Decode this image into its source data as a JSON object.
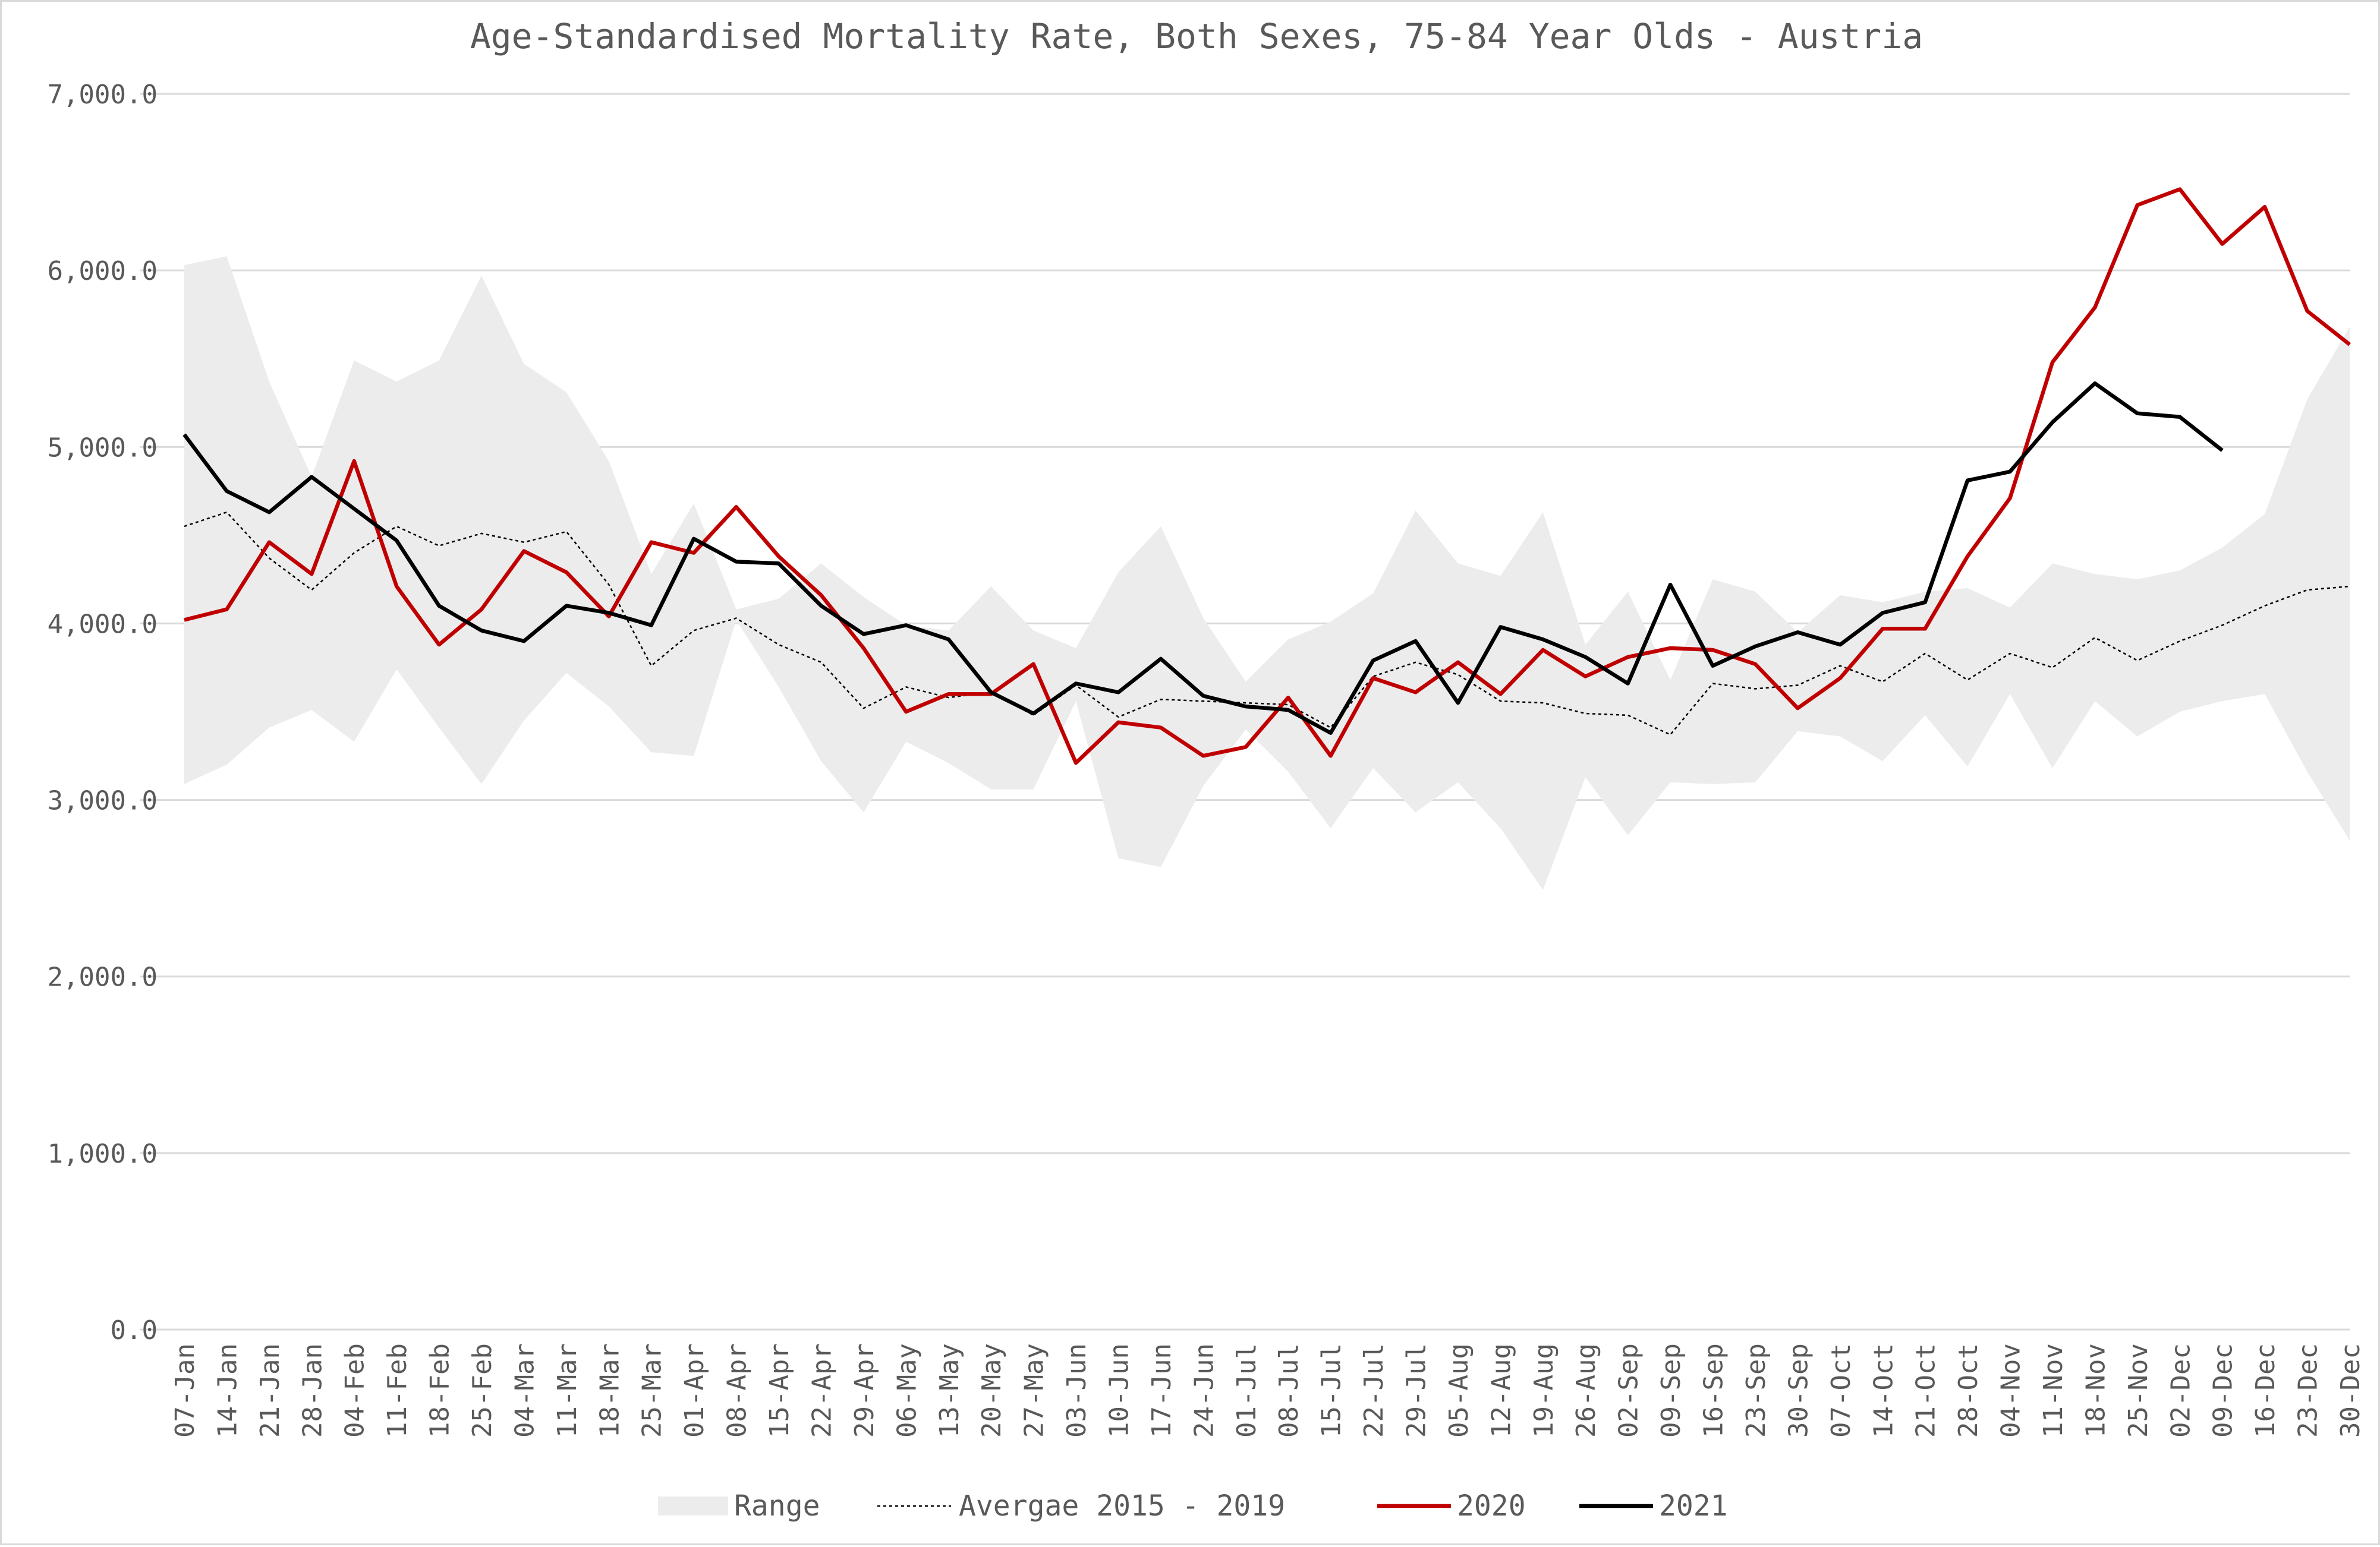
{
  "chart_data": {
    "type": "line",
    "title": "Age-Standardised Mortality Rate, Both Sexes, 75-84 Year Olds - Austria",
    "xlabel": "",
    "ylabel": "",
    "ylim": [
      0,
      7000
    ],
    "y_ticks": [
      "0.0",
      "1,000.0",
      "2,000.0",
      "3,000.0",
      "4,000.0",
      "5,000.0",
      "6,000.0",
      "7,000.0"
    ],
    "y_tick_values": [
      0,
      1000,
      2000,
      3000,
      4000,
      5000,
      6000,
      7000
    ],
    "grid": "horizontal",
    "legend_position": "bottom",
    "categories": [
      "07-Jan",
      "14-Jan",
      "21-Jan",
      "28-Jan",
      "04-Feb",
      "11-Feb",
      "18-Feb",
      "25-Feb",
      "04-Mar",
      "11-Mar",
      "18-Mar",
      "25-Mar",
      "01-Apr",
      "08-Apr",
      "15-Apr",
      "22-Apr",
      "29-Apr",
      "06-May",
      "13-May",
      "20-May",
      "27-May",
      "03-Jun",
      "10-Jun",
      "17-Jun",
      "24-Jun",
      "01-Jul",
      "08-Jul",
      "15-Jul",
      "22-Jul",
      "29-Jul",
      "05-Aug",
      "12-Aug",
      "19-Aug",
      "26-Aug",
      "02-Sep",
      "09-Sep",
      "16-Sep",
      "23-Sep",
      "30-Sep",
      "07-Oct",
      "14-Oct",
      "21-Oct",
      "28-Oct",
      "04-Nov",
      "11-Nov",
      "18-Nov",
      "25-Nov",
      "02-Dec",
      "09-Dec",
      "16-Dec",
      "23-Dec",
      "30-Dec"
    ],
    "range": {
      "name": "Range",
      "color": "#ececec",
      "lower": [
        3090,
        3200,
        3410,
        3510,
        3330,
        3740,
        3410,
        3090,
        3450,
        3720,
        3530,
        3270,
        3250,
        4020,
        3640,
        3220,
        2930,
        3330,
        3210,
        3060,
        3060,
        3560,
        2670,
        2620,
        3080,
        3400,
        3160,
        2840,
        3180,
        2930,
        3100,
        2840,
        2490,
        3130,
        2800,
        3100,
        3090,
        3100,
        3390,
        3360,
        3220,
        3480,
        3190,
        3600,
        3180,
        3560,
        3360,
        3500,
        3560,
        3600,
        3160,
        2770
      ],
      "upper": [
        6030,
        6080,
        5370,
        4830,
        5490,
        5370,
        5490,
        5970,
        5470,
        5310,
        4920,
        4280,
        4680,
        4080,
        4140,
        4340,
        4150,
        3990,
        3960,
        4210,
        3960,
        3860,
        4290,
        4550,
        4030,
        3670,
        3910,
        4010,
        4170,
        4640,
        4340,
        4270,
        4630,
        3880,
        4180,
        3680,
        4250,
        4180,
        3950,
        4160,
        4120,
        4180,
        4200,
        4090,
        4340,
        4280,
        4250,
        4300,
        4430,
        4620,
        5270,
        5680
      ]
    },
    "series": [
      {
        "name": "Avergae 2015 - 2019",
        "color": "#000000",
        "style": "dotted",
        "values": [
          4550,
          4630,
          4370,
          4190,
          4400,
          4550,
          4440,
          4510,
          4460,
          4520,
          4220,
          3760,
          3960,
          4030,
          3880,
          3780,
          3520,
          3640,
          3580,
          3610,
          3480,
          3650,
          3470,
          3570,
          3560,
          3550,
          3540,
          3410,
          3700,
          3780,
          3710,
          3560,
          3550,
          3490,
          3480,
          3370,
          3660,
          3630,
          3650,
          3760,
          3670,
          3830,
          3680,
          3830,
          3750,
          3920,
          3790,
          3900,
          3990,
          4100,
          4190,
          4210
        ]
      },
      {
        "name": "2020",
        "color": "#c00000",
        "style": "solid",
        "values": [
          4020,
          4080,
          4460,
          4280,
          4920,
          4210,
          3880,
          4080,
          4410,
          4290,
          4040,
          4460,
          4400,
          4660,
          4380,
          4160,
          3860,
          3500,
          3600,
          3600,
          3770,
          3210,
          3440,
          3410,
          3250,
          3300,
          3580,
          3250,
          3690,
          3610,
          3780,
          3600,
          3850,
          3700,
          3810,
          3860,
          3850,
          3770,
          3520,
          3690,
          3970,
          3970,
          4380,
          4710,
          5480,
          5790,
          6370,
          6460,
          6150,
          6360,
          5770,
          5580
        ]
      },
      {
        "name": "2021",
        "color": "#000000",
        "style": "solid",
        "values": [
          5070,
          4750,
          4630,
          4830,
          4650,
          4470,
          4100,
          3960,
          3900,
          4100,
          4060,
          3990,
          4480,
          4350,
          4340,
          4100,
          3940,
          3990,
          3910,
          3610,
          3490,
          3660,
          3610,
          3800,
          3590,
          3530,
          3510,
          3380,
          3790,
          3900,
          3550,
          3980,
          3910,
          3810,
          3660,
          4220,
          3760,
          3870,
          3950,
          3880,
          4060,
          4120,
          4810,
          4860,
          5140,
          5360,
          5190,
          5170,
          4980,
          null,
          null,
          null
        ]
      }
    ]
  }
}
